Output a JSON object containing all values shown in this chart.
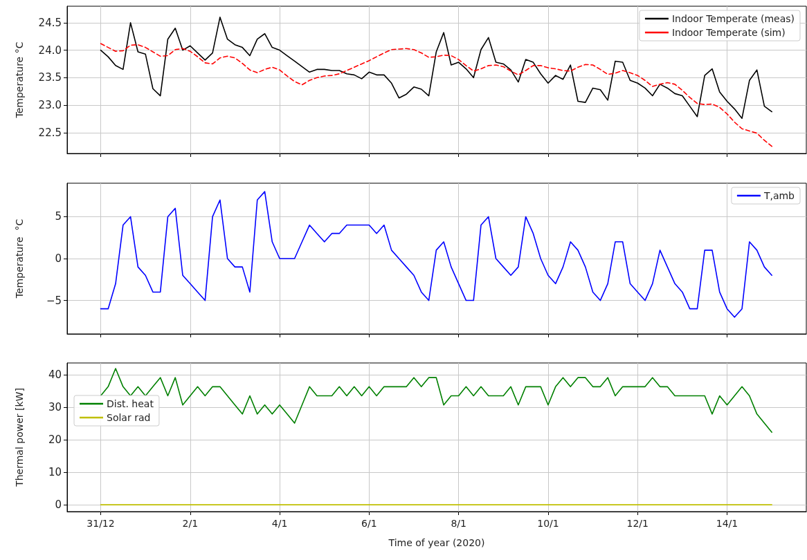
{
  "chart_data": [
    {
      "type": "line",
      "ylabel": "Temperature °C",
      "xlim": [
        "2019-12-30T06:00",
        "2020-01-15T18:30"
      ],
      "ylim": [
        22.12,
        24.8
      ],
      "tick_labels": "y",
      "grid": true,
      "legend": "top right",
      "xticks": [
        {
          "value": "2019-12-31",
          "label": null
        },
        {
          "value": "2020-01-02",
          "label": null
        },
        {
          "value": "2020-01-04",
          "label": null
        },
        {
          "value": "2020-01-06",
          "label": null
        },
        {
          "value": "2020-01-08",
          "label": null
        },
        {
          "value": "2020-01-10",
          "label": null
        },
        {
          "value": "2020-01-12",
          "label": null
        },
        {
          "value": "2020-01-14",
          "label": null
        }
      ],
      "yticks": [
        22.5,
        {
          "value": 23,
          "label": "23.0"
        },
        23.5,
        {
          "value": 24,
          "label": "24.0"
        },
        24.5
      ],
      "x": [
        "2019-12-31T00:00",
        "2019-12-31T04:00",
        "2019-12-31T08:00",
        "2019-12-31T12:00",
        "2019-12-31T16:00",
        "2019-12-31T20:00",
        "2020-01-01T00:00",
        "2020-01-01T04:00",
        "2020-01-01T08:00",
        "2020-01-01T12:00",
        "2020-01-01T16:00",
        "2020-01-01T20:00",
        "2020-01-02T00:00",
        "2020-01-02T04:00",
        "2020-01-02T08:00",
        "2020-01-02T12:00",
        "2020-01-02T16:00",
        "2020-01-02T20:00",
        "2020-01-03T00:00",
        "2020-01-03T04:00",
        "2020-01-03T08:00",
        "2020-01-03T12:00",
        "2020-01-03T16:00",
        "2020-01-03T20:00",
        "2020-01-04T00:00",
        "2020-01-04T04:00",
        "2020-01-04T08:00",
        "2020-01-04T12:00",
        "2020-01-04T16:00",
        "2020-01-04T20:00",
        "2020-01-05T00:00",
        "2020-01-05T04:00",
        "2020-01-05T08:00",
        "2020-01-05T12:00",
        "2020-01-05T16:00",
        "2020-01-05T20:00",
        "2020-01-06T00:00",
        "2020-01-06T04:00",
        "2020-01-06T08:00",
        "2020-01-06T12:00",
        "2020-01-06T16:00",
        "2020-01-06T20:00",
        "2020-01-07T00:00",
        "2020-01-07T04:00",
        "2020-01-07T08:00",
        "2020-01-07T12:00",
        "2020-01-07T16:00",
        "2020-01-07T20:00",
        "2020-01-08T00:00",
        "2020-01-08T04:00",
        "2020-01-08T08:00",
        "2020-01-08T12:00",
        "2020-01-08T16:00",
        "2020-01-08T20:00",
        "2020-01-09T00:00",
        "2020-01-09T04:00",
        "2020-01-09T08:00",
        "2020-01-09T12:00",
        "2020-01-09T16:00",
        "2020-01-09T20:00",
        "2020-01-10T00:00",
        "2020-01-10T04:00",
        "2020-01-10T08:00",
        "2020-01-10T12:00",
        "2020-01-10T16:00",
        "2020-01-10T20:00",
        "2020-01-11T00:00",
        "2020-01-11T04:00",
        "2020-01-11T08:00",
        "2020-01-11T12:00",
        "2020-01-11T16:00",
        "2020-01-11T20:00",
        "2020-01-12T00:00",
        "2020-01-12T04:00",
        "2020-01-12T08:00",
        "2020-01-12T12:00",
        "2020-01-12T16:00",
        "2020-01-12T20:00",
        "2020-01-13T00:00",
        "2020-01-13T04:00",
        "2020-01-13T08:00",
        "2020-01-13T12:00",
        "2020-01-13T16:00",
        "2020-01-13T20:00",
        "2020-01-14T00:00",
        "2020-01-14T04:00",
        "2020-01-14T08:00",
        "2020-01-14T12:00",
        "2020-01-14T16:00",
        "2020-01-14T20:00",
        "2020-01-15T00:00"
      ],
      "series": [
        {
          "name": "Indoor Temperate (meas)",
          "color": "#000000",
          "line_style": "solid",
          "values": [
            24.0,
            23.88,
            23.72,
            23.65,
            24.5,
            23.97,
            23.93,
            23.3,
            23.17,
            24.2,
            24.4,
            24.0,
            24.08,
            23.95,
            23.82,
            23.95,
            24.6,
            24.2,
            24.1,
            24.05,
            23.9,
            24.2,
            24.3,
            24.05,
            24.0,
            23.9,
            23.8,
            23.7,
            23.6,
            23.65,
            23.65,
            23.63,
            23.63,
            23.57,
            23.55,
            23.48,
            23.6,
            23.55,
            23.55,
            23.4,
            23.13,
            23.2,
            23.33,
            23.29,
            23.17,
            23.97,
            24.32,
            23.73,
            23.78,
            23.66,
            23.5,
            24.01,
            24.23,
            23.78,
            23.75,
            23.64,
            23.42,
            23.83,
            23.78,
            23.57,
            23.4,
            23.54,
            23.47,
            23.73,
            23.07,
            23.05,
            23.31,
            23.28,
            23.09,
            23.8,
            23.78,
            23.45,
            23.4,
            23.31,
            23.17,
            23.38,
            23.31,
            23.21,
            23.17,
            22.98,
            22.79,
            23.54,
            23.66,
            23.24,
            23.07,
            22.93,
            22.76,
            23.45,
            23.64,
            22.98,
            22.88
          ]
        },
        {
          "name": "Indoor Temperate (sim)",
          "color": "#ff0000",
          "line_style": "dashed",
          "values": [
            24.12,
            24.05,
            23.98,
            23.99,
            24.09,
            24.1,
            24.05,
            23.97,
            23.89,
            23.9,
            24.01,
            24.03,
            23.98,
            23.88,
            23.77,
            23.75,
            23.86,
            23.89,
            23.86,
            23.76,
            23.64,
            23.59,
            23.65,
            23.69,
            23.64,
            23.53,
            23.43,
            23.37,
            23.45,
            23.5,
            23.53,
            23.54,
            23.57,
            23.63,
            23.69,
            23.75,
            23.81,
            23.88,
            23.95,
            24.01,
            24.02,
            24.03,
            24.01,
            23.95,
            23.87,
            23.88,
            23.91,
            23.9,
            23.83,
            23.72,
            23.62,
            23.66,
            23.72,
            23.73,
            23.7,
            23.62,
            23.55,
            23.63,
            23.72,
            23.72,
            23.68,
            23.66,
            23.63,
            23.62,
            23.69,
            23.74,
            23.73,
            23.65,
            23.56,
            23.58,
            23.63,
            23.59,
            23.54,
            23.45,
            23.34,
            23.38,
            23.41,
            23.38,
            23.27,
            23.14,
            23.03,
            23.01,
            23.02,
            22.96,
            22.84,
            22.69,
            22.57,
            22.53,
            22.49,
            22.36,
            22.25
          ]
        }
      ]
    },
    {
      "type": "line",
      "ylabel": "Temperature  °C",
      "xlim": [
        "2019-12-30T06:00",
        "2020-01-15T18:30"
      ],
      "ylim": [
        -9,
        9
      ],
      "tick_labels": "y",
      "grid": true,
      "legend": "top right",
      "xticks": [
        {
          "value": "2019-12-31",
          "label": null
        },
        {
          "value": "2020-01-02",
          "label": null
        },
        {
          "value": "2020-01-04",
          "label": null
        },
        {
          "value": "2020-01-06",
          "label": null
        },
        {
          "value": "2020-01-08",
          "label": null
        },
        {
          "value": "2020-01-10",
          "label": null
        },
        {
          "value": "2020-01-12",
          "label": null
        },
        {
          "value": "2020-01-14",
          "label": null
        }
      ],
      "yticks": [
        {
          "value": -5,
          "label": "−5"
        },
        0,
        5
      ],
      "x": [
        "2019-12-31T00:00",
        "2019-12-31T04:00",
        "2019-12-31T08:00",
        "2019-12-31T12:00",
        "2019-12-31T16:00",
        "2019-12-31T20:00",
        "2020-01-01T00:00",
        "2020-01-01T04:00",
        "2020-01-01T08:00",
        "2020-01-01T12:00",
        "2020-01-01T16:00",
        "2020-01-01T20:00",
        "2020-01-02T00:00",
        "2020-01-02T04:00",
        "2020-01-02T08:00",
        "2020-01-02T12:00",
        "2020-01-02T16:00",
        "2020-01-02T20:00",
        "2020-01-03T00:00",
        "2020-01-03T04:00",
        "2020-01-03T08:00",
        "2020-01-03T12:00",
        "2020-01-03T16:00",
        "2020-01-03T20:00",
        "2020-01-04T00:00",
        "2020-01-04T04:00",
        "2020-01-04T08:00",
        "2020-01-04T12:00",
        "2020-01-04T16:00",
        "2020-01-04T20:00",
        "2020-01-05T00:00",
        "2020-01-05T04:00",
        "2020-01-05T08:00",
        "2020-01-05T12:00",
        "2020-01-05T16:00",
        "2020-01-05T20:00",
        "2020-01-06T00:00",
        "2020-01-06T04:00",
        "2020-01-06T08:00",
        "2020-01-06T12:00",
        "2020-01-06T16:00",
        "2020-01-06T20:00",
        "2020-01-07T00:00",
        "2020-01-07T04:00",
        "2020-01-07T08:00",
        "2020-01-07T12:00",
        "2020-01-07T16:00",
        "2020-01-07T20:00",
        "2020-01-08T00:00",
        "2020-01-08T04:00",
        "2020-01-08T08:00",
        "2020-01-08T12:00",
        "2020-01-08T16:00",
        "2020-01-08T20:00",
        "2020-01-09T00:00",
        "2020-01-09T04:00",
        "2020-01-09T08:00",
        "2020-01-09T12:00",
        "2020-01-09T16:00",
        "2020-01-09T20:00",
        "2020-01-10T00:00",
        "2020-01-10T04:00",
        "2020-01-10T08:00",
        "2020-01-10T12:00",
        "2020-01-10T16:00",
        "2020-01-10T20:00",
        "2020-01-11T00:00",
        "2020-01-11T04:00",
        "2020-01-11T08:00",
        "2020-01-11T12:00",
        "2020-01-11T16:00",
        "2020-01-11T20:00",
        "2020-01-12T00:00",
        "2020-01-12T04:00",
        "2020-01-12T08:00",
        "2020-01-12T12:00",
        "2020-01-12T16:00",
        "2020-01-12T20:00",
        "2020-01-13T00:00",
        "2020-01-13T04:00",
        "2020-01-13T08:00",
        "2020-01-13T12:00",
        "2020-01-13T16:00",
        "2020-01-13T20:00",
        "2020-01-14T00:00",
        "2020-01-14T04:00",
        "2020-01-14T08:00",
        "2020-01-14T12:00",
        "2020-01-14T16:00",
        "2020-01-14T20:00",
        "2020-01-15T00:00"
      ],
      "series": [
        {
          "name": "T,amb",
          "color": "#0000ff",
          "values": [
            -6,
            -6,
            -3,
            4,
            5,
            -1,
            -2,
            -4,
            -4,
            5,
            6,
            -2,
            -3,
            -4,
            -5,
            5,
            7,
            0,
            -1,
            -1,
            -4,
            7,
            8,
            2,
            0,
            0,
            0,
            2,
            4,
            3,
            2,
            3,
            3,
            4,
            4,
            4,
            4,
            3,
            4,
            1,
            0,
            -1,
            -2,
            -4,
            -5,
            1,
            2,
            -1,
            -3,
            -5,
            -5,
            4,
            5,
            0,
            -1,
            -2,
            -1,
            5,
            3,
            0,
            -2,
            -3,
            -1,
            2,
            1,
            -1,
            -4,
            -5,
            -3,
            2,
            2,
            -3,
            -4,
            -5,
            -3,
            1,
            -1,
            -3,
            -4,
            -6,
            -6,
            1,
            1,
            -4,
            -6,
            -7,
            -6,
            2,
            1,
            -1,
            -2
          ]
        }
      ]
    },
    {
      "type": "line",
      "xlabel": "Time of year (2020)",
      "ylabel": "Thermal power [kW]",
      "xlim": [
        "2019-12-30T06:00",
        "2020-01-15T18:30"
      ],
      "ylim": [
        -2.1,
        43.6
      ],
      "grid": true,
      "legend": "left",
      "xticks": [
        {
          "value": "2019-12-31",
          "label": "31/12"
        },
        {
          "value": "2020-01-02",
          "label": "2/1"
        },
        {
          "value": "2020-01-04",
          "label": "4/1"
        },
        {
          "value": "2020-01-06",
          "label": "6/1"
        },
        {
          "value": "2020-01-08",
          "label": "8/1"
        },
        {
          "value": "2020-01-10",
          "label": "10/1"
        },
        {
          "value": "2020-01-12",
          "label": "12/1"
        },
        {
          "value": "2020-01-14",
          "label": "14/1"
        }
      ],
      "yticks": [
        0,
        10,
        20,
        30,
        40
      ],
      "x": [
        "2019-12-31T00:00",
        "2019-12-31T04:00",
        "2019-12-31T08:00",
        "2019-12-31T12:00",
        "2019-12-31T16:00",
        "2019-12-31T20:00",
        "2020-01-01T00:00",
        "2020-01-01T04:00",
        "2020-01-01T08:00",
        "2020-01-01T12:00",
        "2020-01-01T16:00",
        "2020-01-01T20:00",
        "2020-01-02T00:00",
        "2020-01-02T04:00",
        "2020-01-02T08:00",
        "2020-01-02T12:00",
        "2020-01-02T16:00",
        "2020-01-02T20:00",
        "2020-01-03T00:00",
        "2020-01-03T04:00",
        "2020-01-03T08:00",
        "2020-01-03T12:00",
        "2020-01-03T16:00",
        "2020-01-03T20:00",
        "2020-01-04T00:00",
        "2020-01-04T04:00",
        "2020-01-04T08:00",
        "2020-01-04T12:00",
        "2020-01-04T16:00",
        "2020-01-04T20:00",
        "2020-01-05T00:00",
        "2020-01-05T04:00",
        "2020-01-05T08:00",
        "2020-01-05T12:00",
        "2020-01-05T16:00",
        "2020-01-05T20:00",
        "2020-01-06T00:00",
        "2020-01-06T04:00",
        "2020-01-06T08:00",
        "2020-01-06T12:00",
        "2020-01-06T16:00",
        "2020-01-06T20:00",
        "2020-01-07T00:00",
        "2020-01-07T04:00",
        "2020-01-07T08:00",
        "2020-01-07T12:00",
        "2020-01-07T16:00",
        "2020-01-07T20:00",
        "2020-01-08T00:00",
        "2020-01-08T04:00",
        "2020-01-08T08:00",
        "2020-01-08T12:00",
        "2020-01-08T16:00",
        "2020-01-08T20:00",
        "2020-01-09T00:00",
        "2020-01-09T04:00",
        "2020-01-09T08:00",
        "2020-01-09T12:00",
        "2020-01-09T16:00",
        "2020-01-09T20:00",
        "2020-01-10T00:00",
        "2020-01-10T04:00",
        "2020-01-10T08:00",
        "2020-01-10T12:00",
        "2020-01-10T16:00",
        "2020-01-10T20:00",
        "2020-01-11T00:00",
        "2020-01-11T04:00",
        "2020-01-11T08:00",
        "2020-01-11T12:00",
        "2020-01-11T16:00",
        "2020-01-11T20:00",
        "2020-01-12T00:00",
        "2020-01-12T04:00",
        "2020-01-12T08:00",
        "2020-01-12T12:00",
        "2020-01-12T16:00",
        "2020-01-12T20:00",
        "2020-01-13T00:00",
        "2020-01-13T04:00",
        "2020-01-13T08:00",
        "2020-01-13T12:00",
        "2020-01-13T16:00",
        "2020-01-13T20:00",
        "2020-01-14T00:00",
        "2020-01-14T04:00",
        "2020-01-14T08:00",
        "2020-01-14T12:00",
        "2020-01-14T16:00",
        "2020-01-14T20:00",
        "2020-01-15T00:00"
      ],
      "series": [
        {
          "name": "Dist. heat",
          "color": "#008000",
          "values": [
            33.5,
            36.3,
            41.9,
            36.3,
            33.5,
            36.3,
            33.5,
            36.3,
            39.1,
            33.5,
            39.1,
            30.7,
            33.5,
            36.3,
            33.5,
            36.3,
            36.3,
            33.5,
            30.7,
            27.9,
            33.5,
            27.9,
            30.7,
            27.9,
            30.7,
            27.9,
            25.1,
            30.7,
            36.3,
            33.5,
            33.5,
            33.5,
            36.3,
            33.5,
            36.3,
            33.5,
            36.3,
            33.5,
            36.3,
            36.3,
            36.3,
            36.3,
            39.1,
            36.3,
            39.1,
            39.1,
            30.7,
            33.5,
            33.5,
            36.3,
            33.5,
            36.3,
            33.5,
            33.5,
            33.5,
            36.3,
            30.7,
            36.3,
            36.3,
            36.3,
            30.7,
            36.3,
            39.1,
            36.3,
            39.1,
            39.1,
            36.3,
            36.3,
            39.1,
            33.5,
            36.3,
            36.3,
            36.3,
            36.3,
            39.1,
            36.3,
            36.3,
            33.5,
            33.5,
            33.5,
            33.5,
            33.5,
            27.9,
            33.5,
            30.7,
            33.5,
            36.3,
            33.5,
            27.9,
            25.1,
            22.3
          ]
        },
        {
          "name": "Solar rad",
          "color": "#bfbf00",
          "x": [
            "2019-12-31T00:00",
            "2020-01-15T00:00"
          ],
          "values": [
            0,
            0
          ]
        }
      ]
    }
  ]
}
